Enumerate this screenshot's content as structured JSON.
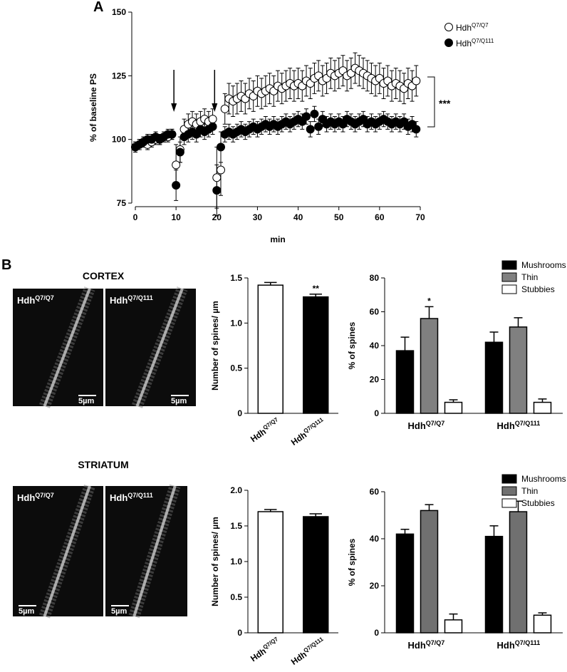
{
  "panel_labels": [
    "A",
    "B"
  ],
  "sections": [
    {
      "title": "CORTEX",
      "images": [
        {
          "label": {
            "base": "Hdh",
            "sup": "Q7/Q7"
          },
          "scale_bar": "5µm"
        },
        {
          "label": {
            "base": "Hdh",
            "sup": "Q7/Q111"
          },
          "scale_bar": "5µm"
        }
      ]
    },
    {
      "title": "STRIATUM",
      "images": [
        {
          "label": {
            "base": "Hdh",
            "sup": "Q7/Q7"
          },
          "scale_bar": "5µm"
        },
        {
          "label": {
            "base": "Hdh",
            "sup": "Q7/Q111"
          },
          "scale_bar": "5µm"
        }
      ]
    }
  ],
  "chart_data": [
    {
      "type": "scatter",
      "xlabel": "min",
      "ylabel": "% of baseline PS",
      "x": [
        0,
        1,
        2,
        3,
        4,
        5,
        6,
        7,
        8,
        9,
        10,
        11,
        12,
        13,
        14,
        15,
        16,
        17,
        18,
        19,
        20,
        21,
        22,
        23,
        24,
        25,
        26,
        27,
        28,
        29,
        30,
        31,
        32,
        33,
        34,
        35,
        36,
        37,
        38,
        39,
        40,
        41,
        42,
        43,
        44,
        45,
        46,
        47,
        48,
        49,
        50,
        51,
        52,
        53,
        54,
        55,
        56,
        57,
        58,
        59,
        60,
        61,
        62,
        63,
        64,
        65,
        66,
        67,
        68,
        69
      ],
      "xlim": [
        0,
        70
      ],
      "xticks": [
        0,
        10,
        20,
        30,
        40,
        50,
        60,
        70
      ],
      "ylim": [
        75,
        150
      ],
      "yticks": [
        75,
        100,
        125,
        150
      ],
      "arrows_x": [
        10,
        20
      ],
      "annotation": "***",
      "series": [
        {
          "name": {
            "base": "Hdh",
            "sup": "Q7/Q7"
          },
          "marker": "open",
          "color": "#000000",
          "values": [
            97,
            98,
            99,
            98,
            99,
            100,
            100,
            101,
            101,
            102,
            90,
            96,
            104,
            106,
            107,
            106,
            107,
            108,
            107,
            108,
            85,
            88,
            112,
            116,
            115,
            116,
            117,
            116,
            118,
            117,
            119,
            118,
            119,
            120,
            119,
            121,
            120,
            121,
            122,
            121,
            122,
            121,
            123,
            122,
            124,
            125,
            123,
            124,
            126,
            125,
            126,
            127,
            125,
            126,
            128,
            127,
            126,
            125,
            124,
            123,
            124,
            122,
            123,
            121,
            122,
            121,
            120,
            122,
            121,
            123
          ],
          "errors": [
            2,
            2,
            2,
            2,
            2,
            2,
            2,
            2,
            2,
            2,
            8,
            5,
            4,
            4,
            4,
            4,
            4,
            4,
            4,
            4,
            12,
            10,
            6,
            6,
            6,
            6,
            6,
            6,
            6,
            6,
            6,
            6,
            6,
            6,
            6,
            6,
            6,
            6,
            6,
            6,
            6,
            6,
            6,
            6,
            6,
            6,
            6,
            6,
            6,
            6,
            6,
            6,
            6,
            6,
            6,
            6,
            6,
            6,
            6,
            6,
            6,
            6,
            6,
            6,
            6,
            6,
            6,
            6,
            6,
            6
          ]
        },
        {
          "name": {
            "base": "Hdh",
            "sup": "Q7/Q111"
          },
          "marker": "filled",
          "color": "#000000",
          "values": [
            97,
            98,
            99,
            100,
            100,
            101,
            100,
            101,
            102,
            102,
            82,
            95,
            101,
            102,
            103,
            102,
            104,
            103,
            104,
            105,
            80,
            97,
            102,
            103,
            102,
            103,
            104,
            103,
            104,
            105,
            104,
            105,
            106,
            105,
            106,
            105,
            106,
            107,
            106,
            107,
            108,
            107,
            109,
            104,
            110,
            105,
            108,
            106,
            107,
            106,
            107,
            106,
            108,
            107,
            106,
            107,
            108,
            106,
            107,
            106,
            107,
            108,
            107,
            106,
            107,
            106,
            107,
            105,
            106,
            104
          ],
          "errors": [
            2,
            2,
            2,
            2,
            2,
            2,
            2,
            2,
            2,
            2,
            6,
            4,
            3,
            3,
            3,
            3,
            3,
            3,
            3,
            3,
            10,
            6,
            3,
            3,
            3,
            3,
            3,
            3,
            3,
            3,
            3,
            3,
            3,
            3,
            3,
            3,
            3,
            3,
            3,
            3,
            3,
            3,
            3,
            3,
            3,
            3,
            3,
            3,
            3,
            3,
            3,
            3,
            3,
            3,
            3,
            3,
            3,
            3,
            3,
            3,
            3,
            3,
            3,
            3,
            3,
            3,
            3,
            3,
            3,
            3
          ]
        }
      ]
    },
    {
      "type": "bar",
      "ylabel": "Number of spines/ µm",
      "categories": [
        {
          "base": "Hdh",
          "sup": "Q7/Q7"
        },
        {
          "base": "Hdh",
          "sup": "Q7/Q111"
        }
      ],
      "values": [
        1.42,
        1.29
      ],
      "errors": [
        0.03,
        0.03
      ],
      "colors": [
        "#ffffff",
        "#000000"
      ],
      "value_annotations": [
        null,
        "**"
      ],
      "ylim": [
        0,
        1.5
      ],
      "yticks": [
        0,
        0.5,
        {
          "value": 1,
          "label": "1.0"
        },
        1.5
      ]
    },
    {
      "type": "grouped_bar",
      "ylabel": "% of spines",
      "categories": [
        {
          "base": "Hdh",
          "sup": "Q7/Q7"
        },
        {
          "base": "Hdh",
          "sup": "Q7/Q111"
        }
      ],
      "ylim": [
        0,
        80
      ],
      "yticks": [
        0,
        20,
        40,
        60,
        80
      ],
      "legend": "upper right",
      "series": [
        {
          "name": "Mushrooms",
          "color": "#000000",
          "values": [
            37,
            42
          ],
          "errors": [
            8,
            6
          ],
          "value_annotations": [
            null,
            null
          ]
        },
        {
          "name": "Thin",
          "color": "#808080",
          "values": [
            56,
            51
          ],
          "errors": [
            7,
            5.5
          ],
          "value_annotations": [
            "*",
            null
          ]
        },
        {
          "name": "Stubbies",
          "color": "#ffffff",
          "values": [
            6.5,
            6.5
          ],
          "errors": [
            1.5,
            2
          ],
          "value_annotations": [
            null,
            null
          ]
        }
      ]
    },
    {
      "type": "bar",
      "ylabel": "Number of spines/ µm",
      "categories": [
        {
          "base": "Hdh",
          "sup": "Q7/Q7"
        },
        {
          "base": "Hdh",
          "sup": "Q7/Q111"
        }
      ],
      "values": [
        1.7,
        1.63
      ],
      "errors": [
        0.03,
        0.04
      ],
      "colors": [
        "#ffffff",
        "#000000"
      ],
      "value_annotations": [
        null,
        null
      ],
      "ylim": [
        0,
        2
      ],
      "yticks": [
        0,
        0.5,
        {
          "value": 1,
          "label": "1.0"
        },
        1.5,
        {
          "value": 2,
          "label": "2.0"
        }
      ]
    },
    {
      "type": "grouped_bar",
      "ylabel": "% of spines",
      "categories": [
        {
          "base": "Hdh",
          "sup": "Q7/Q7"
        },
        {
          "base": "Hdh",
          "sup": "Q7/Q111"
        }
      ],
      "ylim": [
        0,
        60
      ],
      "yticks": [
        0,
        20,
        40,
        60
      ],
      "legend": "upper right",
      "series": [
        {
          "name": "Mushrooms",
          "color": "#000000",
          "values": [
            42,
            41
          ],
          "errors": [
            2,
            4.5
          ],
          "value_annotations": [
            null,
            null
          ]
        },
        {
          "name": "Thin",
          "color": "#707070",
          "values": [
            52,
            51.5
          ],
          "errors": [
            2.5,
            4.5
          ],
          "value_annotations": [
            null,
            null
          ]
        },
        {
          "name": "Stubbies",
          "color": "#ffffff",
          "values": [
            5.5,
            7.5
          ],
          "errors": [
            2.5,
            1
          ],
          "value_annotations": [
            null,
            null
          ]
        }
      ]
    }
  ]
}
